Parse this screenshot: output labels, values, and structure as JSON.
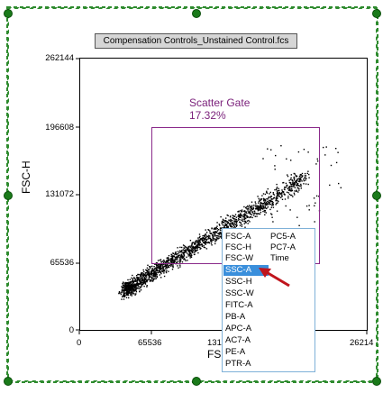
{
  "title": "Compensation Controls_Unstained Control.fcs",
  "y_axis": {
    "label": "FSC-H",
    "ticks": [
      "262144",
      "196608",
      "131072",
      "65536",
      "0"
    ]
  },
  "x_axis": {
    "label": "FSC",
    "ticks": [
      "0",
      "65536",
      "131",
      "26214"
    ]
  },
  "gate": {
    "name": "Scatter Gate",
    "percent": "17.32%"
  },
  "menu": {
    "col1": [
      "FSC-A",
      "FSC-H",
      "FSC-W",
      "SSC-A",
      "SSC-H",
      "SSC-W",
      "FITC-A",
      "PB-A",
      "APC-A",
      "AC7-A",
      "PE-A",
      "PTR-A"
    ],
    "col2": [
      "PC5-A",
      "PC7-A",
      "Time"
    ],
    "selected": "SSC-A"
  },
  "colors": {
    "handle": "#1a7a1a",
    "gate": "#8a2a8a",
    "selection": "#3a8fdc",
    "arrow": "#c0151d"
  }
}
